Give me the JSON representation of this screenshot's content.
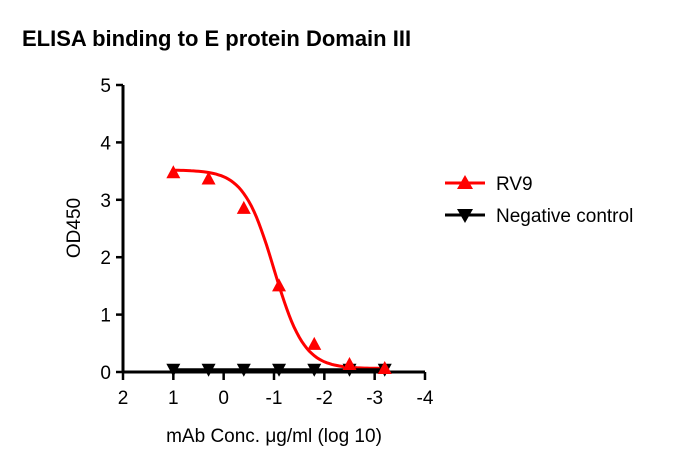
{
  "chart_data": {
    "type": "line",
    "title": "ELISA binding to E protein Domain III",
    "xlabel": "mAb Conc. μg/ml (log 10)",
    "ylabel": "OD450",
    "xlim": [
      2,
      -4
    ],
    "ylim": [
      0,
      5
    ],
    "xticks": [
      "2",
      "1",
      "0",
      "-1",
      "-2",
      "-3",
      "-4"
    ],
    "yticks": [
      "0",
      "1",
      "2",
      "3",
      "4",
      "5"
    ],
    "legend_position": "right",
    "series": [
      {
        "name": "RV9",
        "color": "#ff0000",
        "marker": "triangle-up",
        "x": [
          1,
          0.3,
          -0.4,
          -1.1,
          -1.8,
          -2.5,
          -3.2
        ],
        "y": [
          3.48,
          3.37,
          2.86,
          1.51,
          0.49,
          0.14,
          0.07
        ]
      },
      {
        "name": "Negative control",
        "color": "#000000",
        "marker": "triangle-down",
        "x": [
          1,
          0.3,
          -0.4,
          -1.1,
          -1.8,
          -2.5,
          -3.2
        ],
        "y": [
          0.04,
          0.04,
          0.04,
          0.04,
          0.04,
          0.04,
          0.04
        ]
      }
    ]
  }
}
